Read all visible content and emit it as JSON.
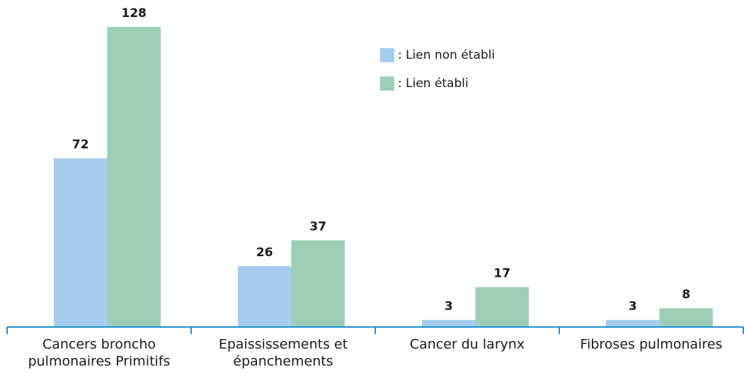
{
  "chart_data": {
    "type": "bar",
    "categories": [
      [
        "Cancers broncho",
        "pulmonaires Primitifs"
      ],
      [
        "Epaississements et",
        "épanchements"
      ],
      [
        "Cancer du larynx"
      ],
      [
        "Fibroses pulmonaires"
      ]
    ],
    "series": [
      {
        "name": ": Lien non établi",
        "color": "#a6cdee",
        "values": [
          72,
          26,
          3,
          3
        ]
      },
      {
        "name": ": Lien établi",
        "color": "#9ccfb5",
        "values": [
          128,
          37,
          17,
          8
        ]
      }
    ],
    "axis_color": "#1b8fd0"
  }
}
